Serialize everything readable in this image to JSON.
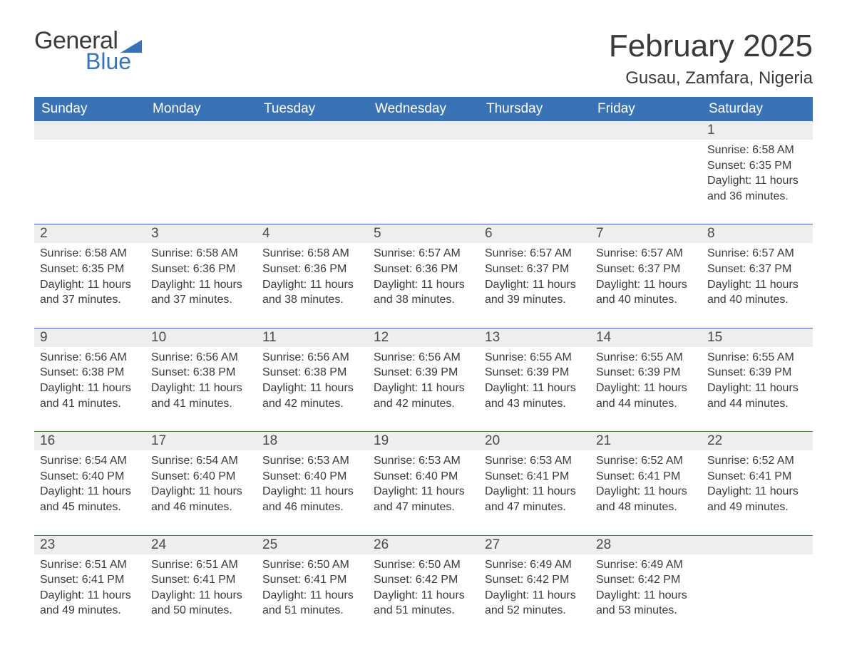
{
  "brand": {
    "word1": "General",
    "word2": "Blue",
    "sail_color": "#3a73b5"
  },
  "title": "February 2025",
  "location": "Gusau, Zamfara, Nigeria",
  "colors": {
    "header_bg": "#3a73b5",
    "header_text": "#ffffff",
    "daynum_bg": "#eeeeee",
    "text": "#3a3a3a",
    "rule": "#3a73b5",
    "page_bg": "#ffffff"
  },
  "fonts": {
    "title_size_pt": 33,
    "location_size_pt": 18,
    "header_size_pt": 14,
    "body_size_pt": 12
  },
  "day_headers": [
    "Sunday",
    "Monday",
    "Tuesday",
    "Wednesday",
    "Thursday",
    "Friday",
    "Saturday"
  ],
  "weeks": [
    [
      null,
      null,
      null,
      null,
      null,
      null,
      {
        "n": "1",
        "sunrise": "6:58 AM",
        "sunset": "6:35 PM",
        "dl1": "Daylight: 11 hours",
        "dl2": "and 36 minutes."
      }
    ],
    [
      {
        "n": "2",
        "sunrise": "6:58 AM",
        "sunset": "6:35 PM",
        "dl1": "Daylight: 11 hours",
        "dl2": "and 37 minutes."
      },
      {
        "n": "3",
        "sunrise": "6:58 AM",
        "sunset": "6:36 PM",
        "dl1": "Daylight: 11 hours",
        "dl2": "and 37 minutes."
      },
      {
        "n": "4",
        "sunrise": "6:58 AM",
        "sunset": "6:36 PM",
        "dl1": "Daylight: 11 hours",
        "dl2": "and 38 minutes."
      },
      {
        "n": "5",
        "sunrise": "6:57 AM",
        "sunset": "6:36 PM",
        "dl1": "Daylight: 11 hours",
        "dl2": "and 38 minutes."
      },
      {
        "n": "6",
        "sunrise": "6:57 AM",
        "sunset": "6:37 PM",
        "dl1": "Daylight: 11 hours",
        "dl2": "and 39 minutes."
      },
      {
        "n": "7",
        "sunrise": "6:57 AM",
        "sunset": "6:37 PM",
        "dl1": "Daylight: 11 hours",
        "dl2": "and 40 minutes."
      },
      {
        "n": "8",
        "sunrise": "6:57 AM",
        "sunset": "6:37 PM",
        "dl1": "Daylight: 11 hours",
        "dl2": "and 40 minutes."
      }
    ],
    [
      {
        "n": "9",
        "sunrise": "6:56 AM",
        "sunset": "6:38 PM",
        "dl1": "Daylight: 11 hours",
        "dl2": "and 41 minutes."
      },
      {
        "n": "10",
        "sunrise": "6:56 AM",
        "sunset": "6:38 PM",
        "dl1": "Daylight: 11 hours",
        "dl2": "and 41 minutes."
      },
      {
        "n": "11",
        "sunrise": "6:56 AM",
        "sunset": "6:38 PM",
        "dl1": "Daylight: 11 hours",
        "dl2": "and 42 minutes."
      },
      {
        "n": "12",
        "sunrise": "6:56 AM",
        "sunset": "6:39 PM",
        "dl1": "Daylight: 11 hours",
        "dl2": "and 42 minutes."
      },
      {
        "n": "13",
        "sunrise": "6:55 AM",
        "sunset": "6:39 PM",
        "dl1": "Daylight: 11 hours",
        "dl2": "and 43 minutes."
      },
      {
        "n": "14",
        "sunrise": "6:55 AM",
        "sunset": "6:39 PM",
        "dl1": "Daylight: 11 hours",
        "dl2": "and 44 minutes."
      },
      {
        "n": "15",
        "sunrise": "6:55 AM",
        "sunset": "6:39 PM",
        "dl1": "Daylight: 11 hours",
        "dl2": "and 44 minutes."
      }
    ],
    [
      {
        "n": "16",
        "sunrise": "6:54 AM",
        "sunset": "6:40 PM",
        "dl1": "Daylight: 11 hours",
        "dl2": "and 45 minutes."
      },
      {
        "n": "17",
        "sunrise": "6:54 AM",
        "sunset": "6:40 PM",
        "dl1": "Daylight: 11 hours",
        "dl2": "and 46 minutes."
      },
      {
        "n": "18",
        "sunrise": "6:53 AM",
        "sunset": "6:40 PM",
        "dl1": "Daylight: 11 hours",
        "dl2": "and 46 minutes."
      },
      {
        "n": "19",
        "sunrise": "6:53 AM",
        "sunset": "6:40 PM",
        "dl1": "Daylight: 11 hours",
        "dl2": "and 47 minutes."
      },
      {
        "n": "20",
        "sunrise": "6:53 AM",
        "sunset": "6:41 PM",
        "dl1": "Daylight: 11 hours",
        "dl2": "and 47 minutes."
      },
      {
        "n": "21",
        "sunrise": "6:52 AM",
        "sunset": "6:41 PM",
        "dl1": "Daylight: 11 hours",
        "dl2": "and 48 minutes."
      },
      {
        "n": "22",
        "sunrise": "6:52 AM",
        "sunset": "6:41 PM",
        "dl1": "Daylight: 11 hours",
        "dl2": "and 49 minutes."
      }
    ],
    [
      {
        "n": "23",
        "sunrise": "6:51 AM",
        "sunset": "6:41 PM",
        "dl1": "Daylight: 11 hours",
        "dl2": "and 49 minutes."
      },
      {
        "n": "24",
        "sunrise": "6:51 AM",
        "sunset": "6:41 PM",
        "dl1": "Daylight: 11 hours",
        "dl2": "and 50 minutes."
      },
      {
        "n": "25",
        "sunrise": "6:50 AM",
        "sunset": "6:41 PM",
        "dl1": "Daylight: 11 hours",
        "dl2": "and 51 minutes."
      },
      {
        "n": "26",
        "sunrise": "6:50 AM",
        "sunset": "6:42 PM",
        "dl1": "Daylight: 11 hours",
        "dl2": "and 51 minutes."
      },
      {
        "n": "27",
        "sunrise": "6:49 AM",
        "sunset": "6:42 PM",
        "dl1": "Daylight: 11 hours",
        "dl2": "and 52 minutes."
      },
      {
        "n": "28",
        "sunrise": "6:49 AM",
        "sunset": "6:42 PM",
        "dl1": "Daylight: 11 hours",
        "dl2": "and 53 minutes."
      },
      null
    ]
  ],
  "labels": {
    "sunrise": "Sunrise: ",
    "sunset": "Sunset: "
  }
}
